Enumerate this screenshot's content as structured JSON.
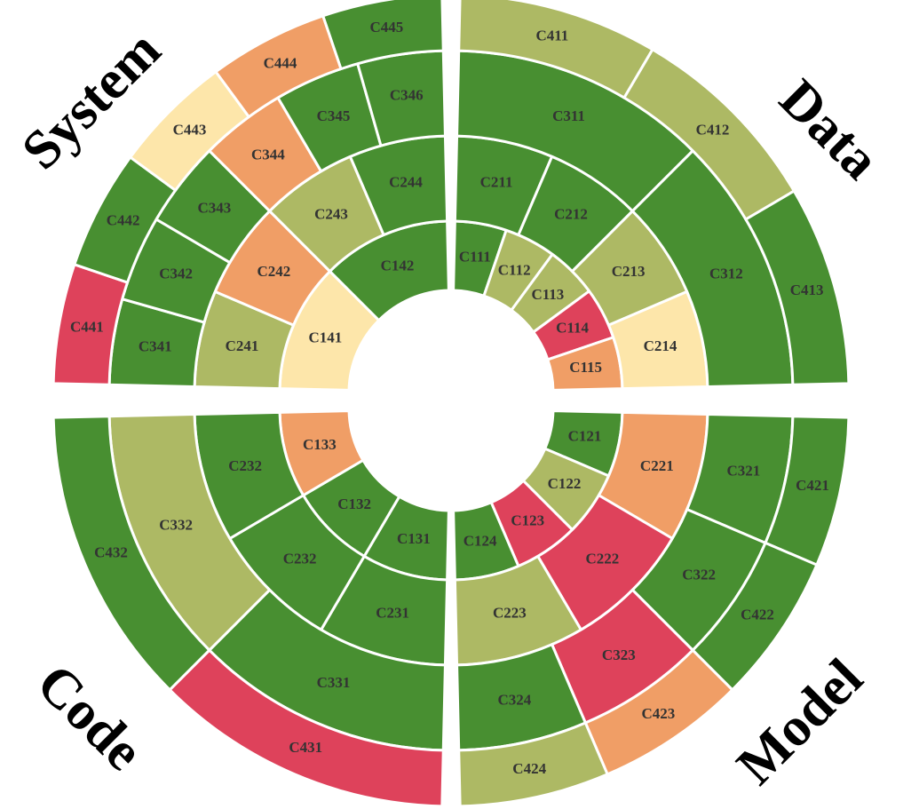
{
  "palette": {
    "dark_green": "#488f31",
    "olive": "#adb964",
    "cream": "#fde6aa",
    "orange": "#f09e66",
    "red": "#de425b",
    "gap": "#ffffff"
  },
  "quadrants": [
    {
      "key": "data",
      "label": "Data"
    },
    {
      "key": "model",
      "label": "Model"
    },
    {
      "key": "code",
      "label": "Code"
    },
    {
      "key": "system",
      "label": "System"
    }
  ],
  "segments": [
    {
      "label": "C111",
      "quadrant": "data",
      "ring": 1,
      "color": "dark_green"
    },
    {
      "label": "C112",
      "quadrant": "data",
      "ring": 1,
      "color": "olive"
    },
    {
      "label": "C113",
      "quadrant": "data",
      "ring": 1,
      "color": "olive"
    },
    {
      "label": "C114",
      "quadrant": "data",
      "ring": 1,
      "color": "red"
    },
    {
      "label": "C115",
      "quadrant": "data",
      "ring": 1,
      "color": "orange"
    },
    {
      "label": "C211",
      "quadrant": "data",
      "ring": 2,
      "color": "dark_green"
    },
    {
      "label": "C212",
      "quadrant": "data",
      "ring": 2,
      "color": "dark_green"
    },
    {
      "label": "C213",
      "quadrant": "data",
      "ring": 2,
      "color": "olive"
    },
    {
      "label": "C214",
      "quadrant": "data",
      "ring": 2,
      "color": "cream"
    },
    {
      "label": "C311",
      "quadrant": "data",
      "ring": 3,
      "color": "dark_green"
    },
    {
      "label": "C312",
      "quadrant": "data",
      "ring": 3,
      "color": "dark_green"
    },
    {
      "label": "C411",
      "quadrant": "data",
      "ring": 4,
      "color": "olive"
    },
    {
      "label": "C412",
      "quadrant": "data",
      "ring": 4,
      "color": "olive"
    },
    {
      "label": "C413",
      "quadrant": "data",
      "ring": 4,
      "color": "dark_green"
    },
    {
      "label": "C121",
      "quadrant": "model",
      "ring": 1,
      "color": "dark_green"
    },
    {
      "label": "C122",
      "quadrant": "model",
      "ring": 1,
      "color": "olive"
    },
    {
      "label": "C123",
      "quadrant": "model",
      "ring": 1,
      "color": "red"
    },
    {
      "label": "C124",
      "quadrant": "model",
      "ring": 1,
      "color": "dark_green"
    },
    {
      "label": "C221",
      "quadrant": "model",
      "ring": 2,
      "color": "orange"
    },
    {
      "label": "C222",
      "quadrant": "model",
      "ring": 2,
      "color": "red"
    },
    {
      "label": "C223",
      "quadrant": "model",
      "ring": 2,
      "color": "olive"
    },
    {
      "label": "C321",
      "quadrant": "model",
      "ring": 3,
      "color": "dark_green"
    },
    {
      "label": "C322",
      "quadrant": "model",
      "ring": 3,
      "color": "dark_green"
    },
    {
      "label": "C323",
      "quadrant": "model",
      "ring": 3,
      "color": "red"
    },
    {
      "label": "C324",
      "quadrant": "model",
      "ring": 3,
      "color": "dark_green"
    },
    {
      "label": "C421",
      "quadrant": "model",
      "ring": 4,
      "color": "dark_green"
    },
    {
      "label": "C422",
      "quadrant": "model",
      "ring": 4,
      "color": "dark_green"
    },
    {
      "label": "C423",
      "quadrant": "model",
      "ring": 4,
      "color": "orange"
    },
    {
      "label": "C424",
      "quadrant": "model",
      "ring": 4,
      "color": "olive"
    },
    {
      "label": "C131",
      "quadrant": "code",
      "ring": 1,
      "color": "dark_green"
    },
    {
      "label": "C132",
      "quadrant": "code",
      "ring": 1,
      "color": "dark_green"
    },
    {
      "label": "C133",
      "quadrant": "code",
      "ring": 1,
      "color": "orange"
    },
    {
      "label": "C231",
      "quadrant": "code",
      "ring": 2,
      "color": "dark_green"
    },
    {
      "label": "C232",
      "quadrant": "code",
      "ring": 2,
      "color": "dark_green"
    },
    {
      "label": "C232",
      "quadrant": "code",
      "ring": 2,
      "color": "dark_green"
    },
    {
      "label": "C331",
      "quadrant": "code",
      "ring": 3,
      "color": "dark_green"
    },
    {
      "label": "C332",
      "quadrant": "code",
      "ring": 3,
      "color": "olive"
    },
    {
      "label": "C431",
      "quadrant": "code",
      "ring": 4,
      "color": "red"
    },
    {
      "label": "C432",
      "quadrant": "code",
      "ring": 4,
      "color": "dark_green"
    },
    {
      "label": "C141",
      "quadrant": "system",
      "ring": 1,
      "color": "cream"
    },
    {
      "label": "C142",
      "quadrant": "system",
      "ring": 1,
      "color": "dark_green"
    },
    {
      "label": "C241",
      "quadrant": "system",
      "ring": 2,
      "color": "olive"
    },
    {
      "label": "C242",
      "quadrant": "system",
      "ring": 2,
      "color": "orange"
    },
    {
      "label": "C243",
      "quadrant": "system",
      "ring": 2,
      "color": "olive"
    },
    {
      "label": "C244",
      "quadrant": "system",
      "ring": 2,
      "color": "dark_green"
    },
    {
      "label": "C341",
      "quadrant": "system",
      "ring": 3,
      "color": "dark_green"
    },
    {
      "label": "C342",
      "quadrant": "system",
      "ring": 3,
      "color": "dark_green"
    },
    {
      "label": "C343",
      "quadrant": "system",
      "ring": 3,
      "color": "dark_green"
    },
    {
      "label": "C344",
      "quadrant": "system",
      "ring": 3,
      "color": "orange"
    },
    {
      "label": "C345",
      "quadrant": "system",
      "ring": 3,
      "color": "dark_green"
    },
    {
      "label": "C346",
      "quadrant": "system",
      "ring": 3,
      "color": "dark_green"
    },
    {
      "label": "C441",
      "quadrant": "system",
      "ring": 4,
      "color": "red"
    },
    {
      "label": "C442",
      "quadrant": "system",
      "ring": 4,
      "color": "dark_green"
    },
    {
      "label": "C443",
      "quadrant": "system",
      "ring": 4,
      "color": "cream"
    },
    {
      "label": "C444",
      "quadrant": "system",
      "ring": 4,
      "color": "orange"
    },
    {
      "label": "C445",
      "quadrant": "system",
      "ring": 4,
      "color": "dark_green"
    }
  ]
}
